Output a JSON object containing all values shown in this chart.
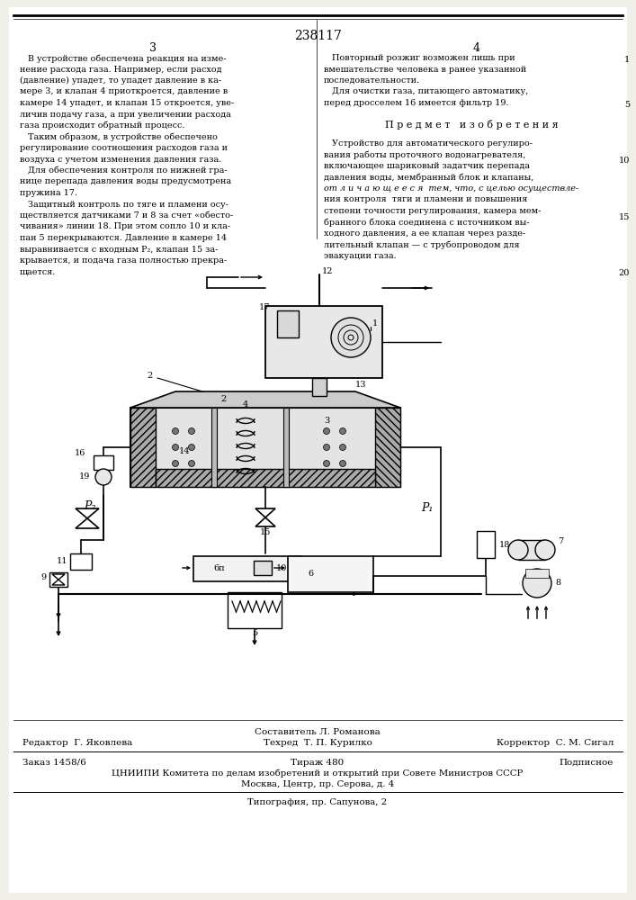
{
  "bg_color": "#f0efe8",
  "page_color": "#ffffff",
  "patent_number": "238117",
  "left_col_num": "3",
  "right_col_num": "4",
  "left_col_text": [
    "   В устройстве обеспечена реакция на изме-",
    "нение расхода газа. Например, если расход",
    "(давление) упадет, то упадет давление в ка-",
    "мере 3, и клапан 4 приоткроется, давление в",
    "камере 14 упадет, и клапан 15 откроется, уве-",
    "личив подачу газа, а при увеличении расхода",
    "газа происходит обратный процесс.",
    "   Таким образом, в устройстве обеспечено",
    "регулирование соотношения расходов газа и",
    "воздуха с учетом изменения давления газа.",
    "   Для обеспечения контроля по нижней гра-",
    "нице перепада давления воды предусмотрена",
    "пружина 17.",
    "   Защитный контроль по тяге и пламени осу-",
    "ществляется датчиками 7 и 8 за счет «обесто-",
    "чивания» линии 18. При этом сопло 10 и кла-",
    "пан 5 перекрываются. Давление в камере 14",
    "выравнивается с входным P₂, клапан 15 за-",
    "крывается, и подача газа полностью прекра-",
    "щается."
  ],
  "right_col_text_1": [
    "   Повторный розжиг возможен лишь при",
    "вмешательстве человека в ранее указанной",
    "последовательности.",
    "   Для очистки газа, питающего автоматику,",
    "перед дросселем 16 имеется фильтр 19."
  ],
  "section_header": "П р е д м е т   и з о б р е т е н и я",
  "right_col_text_2": [
    "   Устройство для автоматического регулиро-",
    "вания работы проточного водонагревателя,",
    "включающее шариковый задатчик перепада",
    "давления воды, мембранный блок и клапаны,",
    "от л и ч а ю щ е е с я  тем, что, с целью осуществле-",
    "ния контроля  тяги и пламени и повышения",
    "степени точности регулирования, камера мем-",
    "бранного блока соединена с источником вы-",
    "ходного давления, а ее клапан через разде-",
    "лительный клапан — с трубопроводом для",
    "эвакуации газа."
  ],
  "line_numbers": [
    5,
    10,
    15,
    20
  ],
  "footer_composer": "Составитель Л. Романова",
  "footer_editor": "Редактор  Г. Яковлева",
  "footer_tech": "Техред  Т. П. Курилко",
  "footer_corrector": "Корректор  С. М. Сигал",
  "footer_order": "Заказ 1458/6",
  "footer_tirazh": "Тираж 480",
  "footer_podpisnoe": "Подписное",
  "footer_cniipi": "ЦНИИПИ Комитета по делам изобретений и открытий при Совете Министров СССР",
  "footer_moscow": "Москва, Центр, пр. Серова, д. 4",
  "footer_tipografia": "Типография, пр. Сапунова, 2"
}
